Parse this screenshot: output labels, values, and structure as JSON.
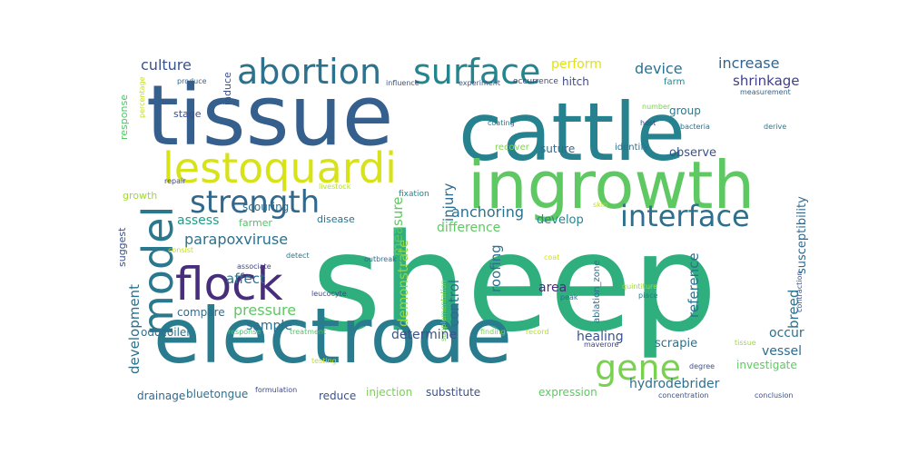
{
  "words": [
    {
      "text": "sheep",
      "color": "#2fae7e"
    },
    {
      "text": "tissue",
      "color": "#355f8d"
    },
    {
      "text": "cattle",
      "color": "#26828e"
    },
    {
      "text": "electrode",
      "color": "#287c8e"
    },
    {
      "text": "ingrowth",
      "color": "#5ec962"
    },
    {
      "text": "lestoquardi",
      "color": "#d8e219"
    },
    {
      "text": "abortion",
      "color": "#2c718e"
    },
    {
      "text": "surface",
      "color": "#25858e"
    },
    {
      "text": "flock",
      "color": "#472d7b"
    },
    {
      "text": "model",
      "color": "#2a788e"
    },
    {
      "text": "strength",
      "color": "#31688e"
    },
    {
      "text": "interface",
      "color": "#2d708e"
    },
    {
      "text": "gene",
      "color": "#7ad151"
    },
    {
      "text": "culture",
      "color": "#3b528b"
    },
    {
      "text": "perform",
      "color": "#dde318"
    },
    {
      "text": "device",
      "color": "#2c728e"
    },
    {
      "text": "increase",
      "color": "#33638d"
    },
    {
      "text": "shrinkage",
      "color": "#424086"
    },
    {
      "text": "stage",
      "color": "#3d4d8a"
    },
    {
      "text": "hitch",
      "color": "#3e4a89"
    },
    {
      "text": "group",
      "color": "#2a788e"
    },
    {
      "text": "farm",
      "color": "#25858e"
    },
    {
      "text": "response",
      "color": "#52c569"
    },
    {
      "text": "induce",
      "color": "#3b528b"
    },
    {
      "text": "produce",
      "color": "#32658e"
    },
    {
      "text": "percentage",
      "color": "#c2df23"
    },
    {
      "text": "influence",
      "color": "#3b528b"
    },
    {
      "text": "experiment",
      "color": "#365c8d"
    },
    {
      "text": "occurrence",
      "color": "#3f4788"
    },
    {
      "text": "measurement",
      "color": "#34618d"
    },
    {
      "text": "number",
      "color": "#7ad151"
    },
    {
      "text": "host",
      "color": "#3e4989"
    },
    {
      "text": "bacteria",
      "color": "#2d708e"
    },
    {
      "text": "derive",
      "color": "#2a788e"
    },
    {
      "text": "coating",
      "color": "#2a788e"
    },
    {
      "text": "recover",
      "color": "#7fd34e"
    },
    {
      "text": "suture",
      "color": "#2f6c8e"
    },
    {
      "text": "identify",
      "color": "#2c718e"
    },
    {
      "text": "observe",
      "color": "#3b528b"
    },
    {
      "text": "growth",
      "color": "#a0da39"
    },
    {
      "text": "repair",
      "color": "#3f4788"
    },
    {
      "text": "livestock",
      "color": "#b5de2b"
    },
    {
      "text": "scouring",
      "color": "#2e6f8e"
    },
    {
      "text": "fixation",
      "color": "#26828e"
    },
    {
      "text": "skin",
      "color": "#c0df25"
    },
    {
      "text": "measure",
      "color": "#5ec962"
    },
    {
      "text": "injury",
      "color": "#2f6c8e"
    },
    {
      "text": "anchoring",
      "color": "#2c718e"
    },
    {
      "text": "difference",
      "color": "#5ec962"
    },
    {
      "text": "develop",
      "color": "#25848e"
    },
    {
      "text": "susceptibility",
      "color": "#31688e"
    },
    {
      "text": "assess",
      "color": "#1f9e89"
    },
    {
      "text": "farmer",
      "color": "#52c569"
    },
    {
      "text": "disease",
      "color": "#2c728e"
    },
    {
      "text": "suggest",
      "color": "#3b528b"
    },
    {
      "text": "parapoxviruse",
      "color": "#2c718e"
    },
    {
      "text": "consist",
      "color": "#bddf26"
    },
    {
      "text": "detect",
      "color": "#2a788e"
    },
    {
      "text": "outbreak",
      "color": "#2c718e"
    },
    {
      "text": "coat",
      "color": "#d0e11c"
    },
    {
      "text": "affect",
      "color": "#2c718e"
    },
    {
      "text": "demonstrate",
      "color": "#90d743"
    },
    {
      "text": "roofing",
      "color": "#2c718e"
    },
    {
      "text": "area",
      "color": "#472d7b"
    },
    {
      "text": "ablation_zone",
      "color": "#2d708e"
    },
    {
      "text": "reference",
      "color": "#2d708e"
    },
    {
      "text": "breed",
      "color": "#2c718e"
    },
    {
      "text": "development",
      "color": "#2c718e"
    },
    {
      "text": "associate",
      "color": "#3f4788"
    },
    {
      "text": "pressure",
      "color": "#5ec962"
    },
    {
      "text": "supplementation",
      "color": "#7ad151"
    },
    {
      "text": "peak",
      "color": "#2c718e"
    },
    {
      "text": "quintiture",
      "color": "#a0da39"
    },
    {
      "text": "piace",
      "color": "#287c8e"
    },
    {
      "text": "contraction",
      "color": "#3b528b"
    },
    {
      "text": "compare",
      "color": "#2f6c8e"
    },
    {
      "text": "sample",
      "color": "#2c718e"
    },
    {
      "text": "leucocyte",
      "color": "#3f4788"
    },
    {
      "text": "control",
      "color": "#2f6c8e"
    },
    {
      "text": "healing",
      "color": "#3b528b"
    },
    {
      "text": "occur",
      "color": "#2c718e"
    },
    {
      "text": "odocoilei",
      "color": "#2c718e"
    },
    {
      "text": "determine",
      "color": "#3b528b"
    },
    {
      "text": "scrapie",
      "color": "#2c718e"
    },
    {
      "text": "vessel",
      "color": "#2f6c8e"
    },
    {
      "text": "maverore",
      "color": "#3f4788"
    },
    {
      "text": "response",
      "color": "#4ac16d"
    },
    {
      "text": "treatment",
      "color": "#52c569"
    },
    {
      "text": "finding",
      "color": "#7ad151"
    },
    {
      "text": "record",
      "color": "#b5de2b"
    },
    {
      "text": "tissue",
      "color": "#a0da39"
    },
    {
      "text": "hydrodebrider",
      "color": "#2d708e"
    },
    {
      "text": "degree",
      "color": "#3b528b"
    },
    {
      "text": "investigate",
      "color": "#5ec962"
    },
    {
      "text": "testing",
      "color": "#c2df23"
    },
    {
      "text": "drainage",
      "color": "#31688e"
    },
    {
      "text": "bluetongue",
      "color": "#2c718e"
    },
    {
      "text": "formulation",
      "color": "#3e4989"
    },
    {
      "text": "reduce",
      "color": "#3b528b"
    },
    {
      "text": "injection",
      "color": "#7ad151"
    },
    {
      "text": "substitute",
      "color": "#3b528b"
    },
    {
      "text": "expression",
      "color": "#5ec962"
    },
    {
      "text": "concentration",
      "color": "#3b528b"
    },
    {
      "text": "conclusion",
      "color": "#3b528b"
    }
  ]
}
